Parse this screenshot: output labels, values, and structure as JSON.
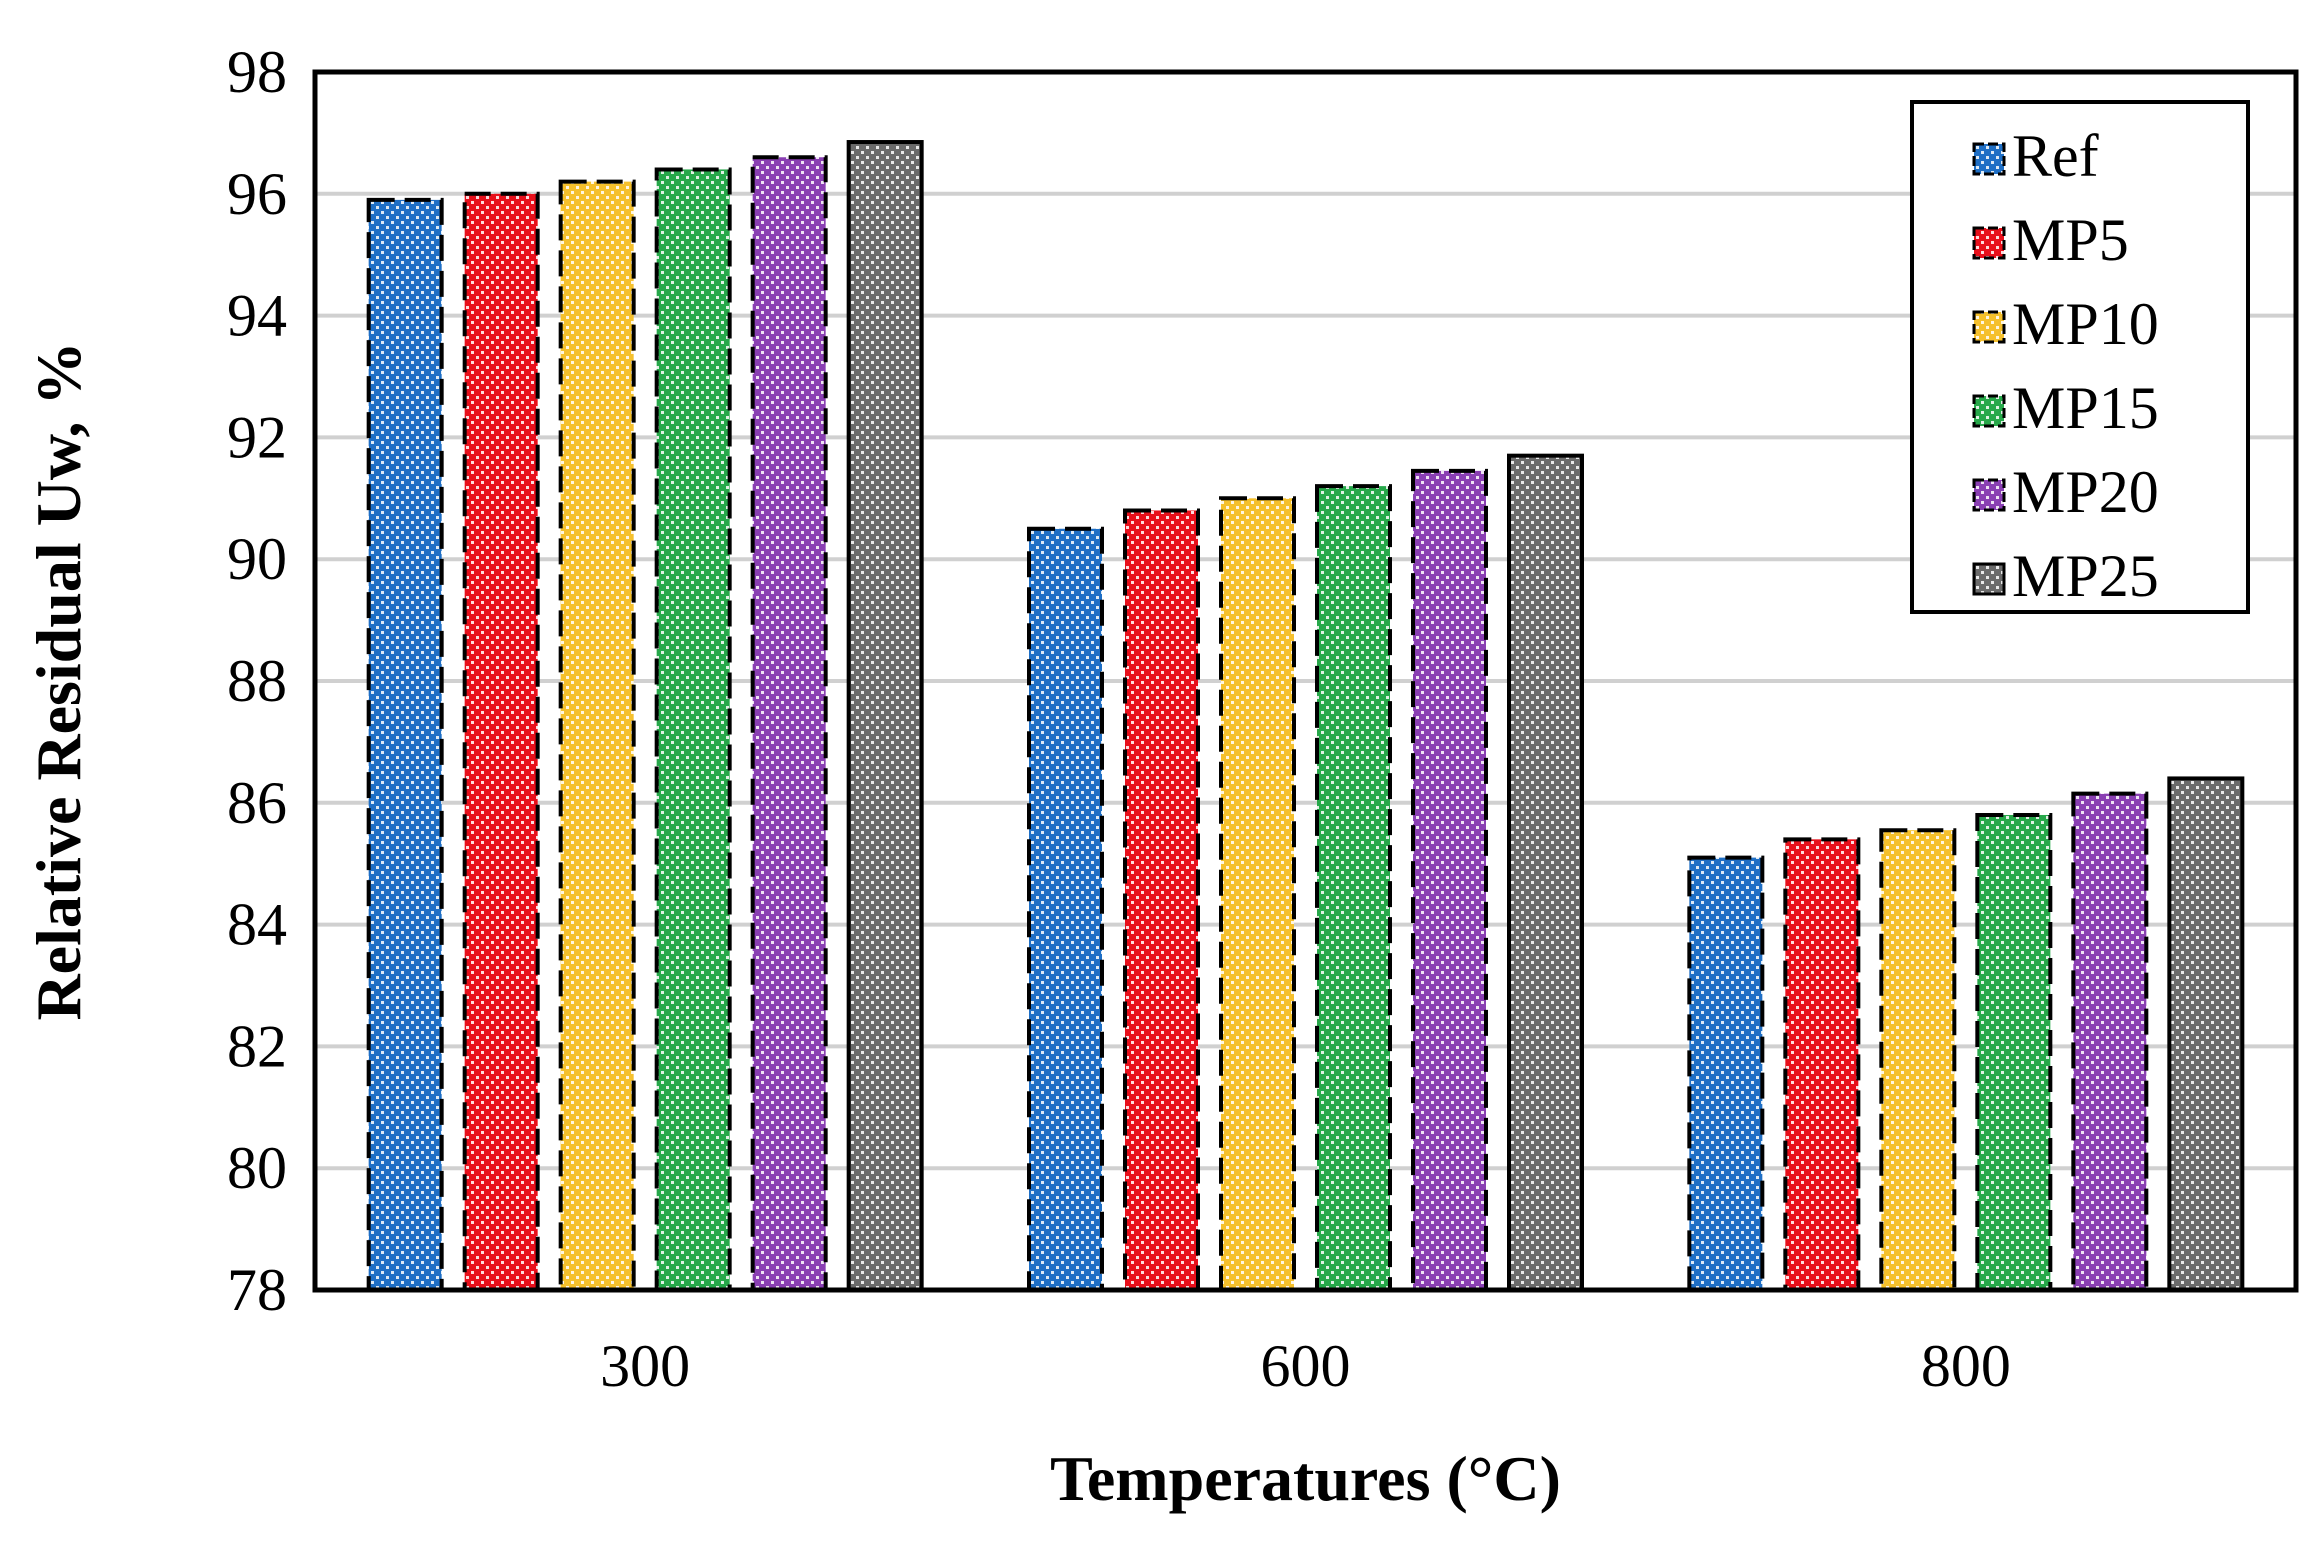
{
  "chart_data": {
    "type": "bar",
    "title": "",
    "xlabel": "Temperatures (°C)",
    "ylabel": "Relative Residual Uw, %",
    "ylim": [
      78,
      98
    ],
    "ytick_step": 2,
    "grid": true,
    "legend_position": "top-right",
    "categories": [
      "300",
      "600",
      "800"
    ],
    "series": [
      {
        "name": "Ref",
        "color": "#1f6fc5",
        "values": [
          95.9,
          90.5,
          85.1
        ]
      },
      {
        "name": "MP5",
        "color": "#e8101b",
        "values": [
          96.0,
          90.8,
          85.4
        ]
      },
      {
        "name": "MP10",
        "color": "#f5c02c",
        "values": [
          96.2,
          91.0,
          85.55
        ]
      },
      {
        "name": "MP15",
        "color": "#27a84a",
        "values": [
          96.4,
          91.2,
          85.8
        ]
      },
      {
        "name": "MP20",
        "color": "#8a3fb3",
        "values": [
          96.6,
          91.45,
          86.15
        ]
      },
      {
        "name": "MP25",
        "color": "#6b6b6b",
        "values": [
          96.85,
          91.7,
          86.4
        ]
      }
    ]
  }
}
